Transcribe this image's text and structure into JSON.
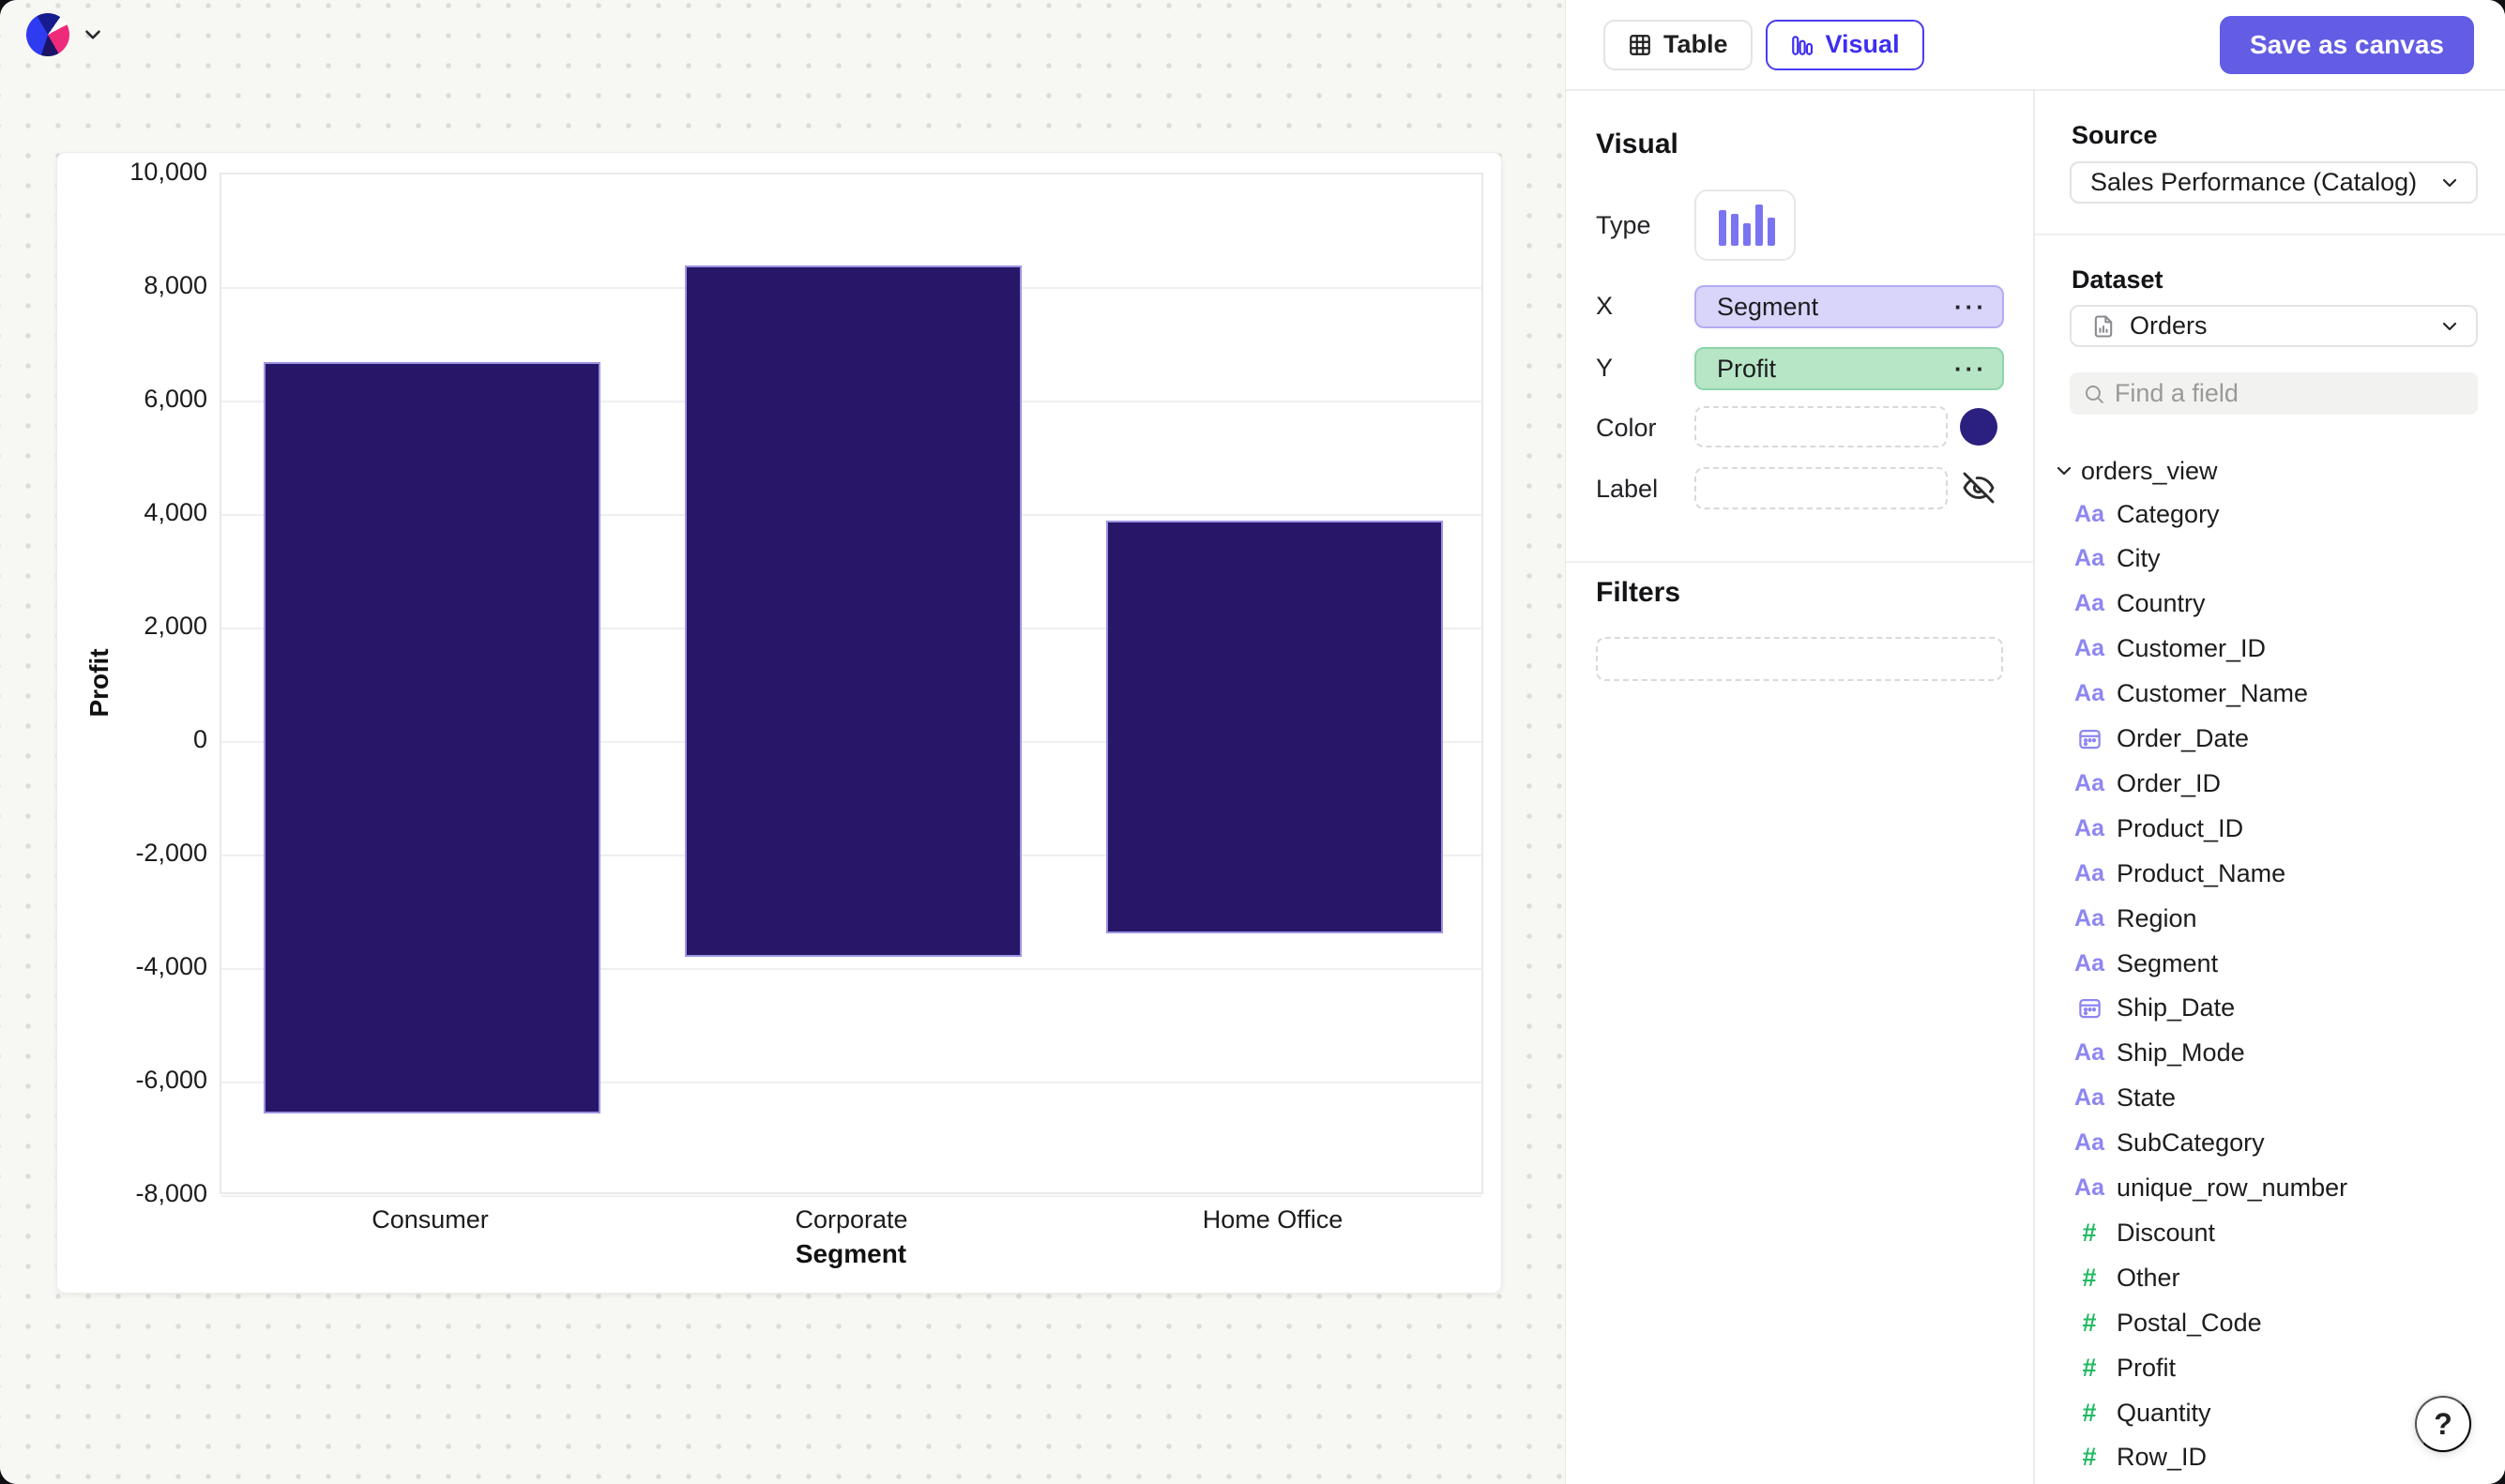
{
  "topbar": {
    "table_label": "Table",
    "visual_label": "Visual",
    "save_label": "Save as canvas"
  },
  "visual_panel": {
    "title": "Visual",
    "type_label": "Type",
    "x_label": "X",
    "y_label": "Y",
    "color_label": "Color",
    "label_label": "Label",
    "x_value": "Segment",
    "y_value": "Profit",
    "menu_ellipsis": "···",
    "filters_title": "Filters",
    "color_swatch": "#2b2080"
  },
  "source_panel": {
    "source_label": "Source",
    "source_value": "Sales Performance (Catalog)",
    "dataset_label": "Dataset",
    "dataset_value": "Orders",
    "search_placeholder": "Find a field",
    "table_group": "orders_view",
    "fields": [
      {
        "name": "Category",
        "type": "string"
      },
      {
        "name": "City",
        "type": "string"
      },
      {
        "name": "Country",
        "type": "string"
      },
      {
        "name": "Customer_ID",
        "type": "string"
      },
      {
        "name": "Customer_Name",
        "type": "string"
      },
      {
        "name": "Order_Date",
        "type": "date"
      },
      {
        "name": "Order_ID",
        "type": "string"
      },
      {
        "name": "Product_ID",
        "type": "string"
      },
      {
        "name": "Product_Name",
        "type": "string"
      },
      {
        "name": "Region",
        "type": "string"
      },
      {
        "name": "Segment",
        "type": "string"
      },
      {
        "name": "Ship_Date",
        "type": "date"
      },
      {
        "name": "Ship_Mode",
        "type": "string"
      },
      {
        "name": "State",
        "type": "string"
      },
      {
        "name": "SubCategory",
        "type": "string"
      },
      {
        "name": "unique_row_number",
        "type": "string"
      },
      {
        "name": "Discount",
        "type": "number"
      },
      {
        "name": "Other",
        "type": "number"
      },
      {
        "name": "Postal_Code",
        "type": "number"
      },
      {
        "name": "Profit",
        "type": "number"
      },
      {
        "name": "Quantity",
        "type": "number"
      },
      {
        "name": "Row_ID",
        "type": "number"
      }
    ]
  },
  "help_label": "?",
  "chart_data": {
    "type": "bar",
    "title": "",
    "xlabel": "Segment",
    "ylabel": "Profit",
    "categories": [
      "Consumer",
      "Corporate",
      "Home Office"
    ],
    "series": [
      {
        "name": "Profit",
        "bars": [
          {
            "category": "Consumer",
            "top": 6700,
            "bottom": -6550
          },
          {
            "category": "Corporate",
            "top": 8400,
            "bottom": -3790
          },
          {
            "category": "Home Office",
            "top": 3900,
            "bottom": -3370
          }
        ]
      }
    ],
    "ylim": [
      -8000,
      10000
    ],
    "ytick_step": 2000,
    "grid": true,
    "legend": "none",
    "bar_color": "#281669",
    "bar_border_color": "#9b94e2"
  }
}
